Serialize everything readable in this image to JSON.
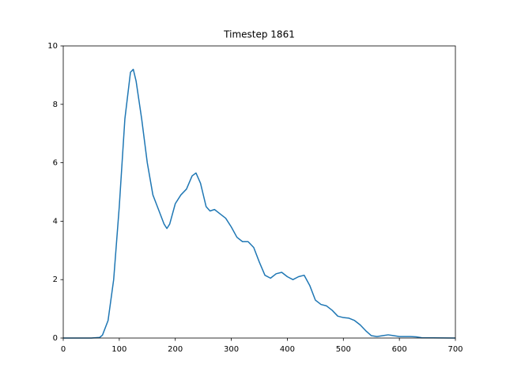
{
  "chart_data": {
    "type": "line",
    "title": "Timestep 1861",
    "x": [
      0,
      50,
      65,
      70,
      80,
      90,
      100,
      110,
      120,
      125,
      130,
      140,
      150,
      160,
      170,
      180,
      185,
      190,
      200,
      210,
      220,
      230,
      237,
      245,
      255,
      262,
      270,
      280,
      290,
      300,
      310,
      320,
      330,
      340,
      350,
      360,
      370,
      380,
      390,
      400,
      410,
      420,
      430,
      440,
      450,
      460,
      470,
      480,
      490,
      500,
      510,
      520,
      530,
      540,
      550,
      560,
      570,
      580,
      590,
      600,
      610,
      620,
      630,
      640,
      700
    ],
    "series": [
      {
        "name": "Timestep 1861",
        "color": "#1f77b4",
        "values": [
          0,
          0,
          0.02,
          0.1,
          0.6,
          2.0,
          4.5,
          7.5,
          9.1,
          9.2,
          8.8,
          7.5,
          6.0,
          4.9,
          4.4,
          3.9,
          3.75,
          3.9,
          4.6,
          4.9,
          5.1,
          5.55,
          5.65,
          5.3,
          4.5,
          4.35,
          4.4,
          4.25,
          4.1,
          3.8,
          3.45,
          3.3,
          3.3,
          3.1,
          2.6,
          2.15,
          2.05,
          2.2,
          2.25,
          2.1,
          2.0,
          2.1,
          2.15,
          1.8,
          1.3,
          1.15,
          1.1,
          0.95,
          0.75,
          0.7,
          0.68,
          0.6,
          0.45,
          0.25,
          0.08,
          0.05,
          0.08,
          0.11,
          0.08,
          0.05,
          0.05,
          0.05,
          0.04,
          0.01,
          0
        ]
      }
    ],
    "xlim": [
      0,
      700
    ],
    "xticks": [
      0,
      100,
      200,
      300,
      400,
      500,
      600,
      700
    ],
    "ylim": [
      0,
      10
    ],
    "yticks": [
      0,
      2,
      4,
      6,
      8,
      10
    ]
  }
}
